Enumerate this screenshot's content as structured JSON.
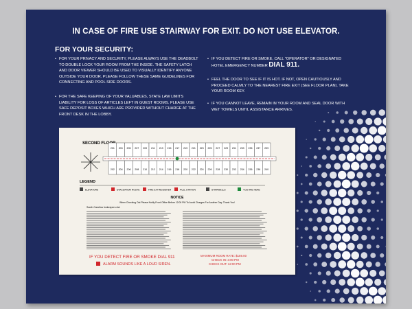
{
  "sign": {
    "title": "IN CASE OF FIRE USE STAIRWAY FOR EXIT. DO NOT USE ELEVATOR.",
    "security_heading": "FOR YOUR SECURITY:",
    "left_items": [
      "FOR YOUR PRIVACY AND SECURITY, PLEASE ALWAYS USE THE DEADBOLT TO DOUBLE LOCK YOUR ROOM FROM THE INSIDE. THE SAFETY LATCH AND DOOR VIEWER SHOULD BE USED TO VISUALLY IDENTIFY ANYONE OUTSIDE YOUR DOOR. PLEASE FOLLOW THESE SAME GUIDELINES FOR CONNECTING AND POOL SIDE DOORS.",
      "FOR THE SAFE KEEPING OF YOUR VALUABLES, STATE LAW LIMITS LIABILITY FOR LOSS OF ARTICLES LEFT IN GUEST ROOMS. PLEASE USE SAFE DEPOSIT BOXES WHICH ARE PROVIDED WITHOUT CHARGE AT THE FRONT DESK IN THE LOBBY."
    ],
    "right_items": [
      {
        "text": "IF YOU DETECT FIRE OR SMOKE, CALL \"OPERATOR\" OR DESIGNATED HOTEL EMERGENCY NUMBER",
        "emphasis": "DIAL 911."
      },
      {
        "text": "FEEL THE DOOR TO SEE IF IT IS HOT. IF NOT, OPEN CAUTIOUSLY AND PROCEED CALMLY TO THE NEAREST FIRE EXIT (SEE FLOOR PLAN). TAKE YOUR ROOM KEY."
      },
      {
        "text": "IF YOU CANNOT LEAVE, REMAIN IN YOUR ROOM AND SEAL DOOR WITH WET TOWELS UNTIL ASSISTANCE ARRIVES."
      }
    ],
    "floor_plan": {
      "floor_label": "SECOND FLOOR",
      "top_rooms": [
        "201",
        "203",
        "205",
        "207",
        "209",
        "211",
        "213",
        "215",
        "217",
        "219",
        "221",
        "223",
        "225",
        "227",
        "229",
        "231",
        "233",
        "235",
        "237",
        "239"
      ],
      "bottom_rooms": [
        "202",
        "204",
        "206",
        "208",
        "210",
        "212",
        "214",
        "216",
        "218",
        "220",
        "222",
        "224",
        "226",
        "228",
        "230",
        "232",
        "234",
        "236",
        "238",
        "240"
      ]
    },
    "legend": {
      "title": "LEGEND",
      "items": [
        "ELEVATORS",
        "EVACUATION ROUTE",
        "FIRE EXTINGUISHER",
        "PULL STATION",
        "STAIRWELLS",
        "YOU ARE HERE"
      ]
    },
    "notice": {
      "title": "NOTICE",
      "text": "When Checking Out Please Notify Front Office Before 12:00 PM To Avoid Charges For Another Day. Thank You!",
      "act": "South Carolina Innkeepers Act"
    },
    "footer": {
      "fire": "IF YOU DETECT FIRE OR SMOKE DIAL 911",
      "alarm": "ALARM SOUNDS LIKE A LOUD SIREN.",
      "rate": "MAXIMUM ROOM RATE: $159.00",
      "check_in": "CHECK IN: 3:00 PM",
      "check_out": "CHECK OUT: 12:00 PM"
    }
  }
}
